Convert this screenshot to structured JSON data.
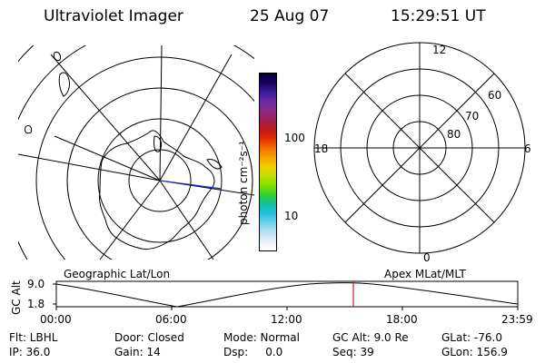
{
  "header": {
    "instrument": "Ultraviolet Imager",
    "date": "25 Aug 07",
    "time": "15:29:51 UT"
  },
  "colorbar": {
    "unit_label": "photon cm⁻²s⁻¹",
    "tick_labels": [
      "100",
      "10"
    ],
    "gradient": [
      "#000030",
      "#1a0060",
      "#3a1a9a",
      "#6a2aa8",
      "#8a2a8a",
      "#a02050",
      "#c01818",
      "#e03000",
      "#f07000",
      "#f8a000",
      "#f0d000",
      "#c0e000",
      "#80e000",
      "#30d030",
      "#10c0a0",
      "#20c0e0",
      "#70d0e8",
      "#b8e0f0",
      "#e8f0f6",
      "#ffffff"
    ]
  },
  "right_plot": {
    "mlt_labels": {
      "top": "12",
      "left": "18",
      "right": "6",
      "bottom": "0"
    },
    "lat_labels": [
      "60",
      "70",
      "80"
    ]
  },
  "timeline": {
    "left_title": "Geographic Lat/Lon",
    "right_title": "Apex MLat/MLT",
    "axis_label": "GC Alt",
    "y_labels": [
      "9.0",
      "1.8"
    ],
    "x_labels": [
      "00:00",
      "06:00",
      "12:00",
      "18:00",
      "23:59"
    ],
    "marker_color": "#c82020"
  },
  "info": {
    "flt": "Flt: LBHL",
    "ip": "IP: 36.0",
    "door": "Door: Closed",
    "gain": "Gain: 14",
    "mode": "Mode: Normal",
    "dsp": "Dsp:     0.0",
    "gc_alt": "GC Alt: 9.0 Re",
    "seq": "Seq: 39",
    "glat": "GLat: -76.0",
    "glon": "GLon: 156.9"
  }
}
